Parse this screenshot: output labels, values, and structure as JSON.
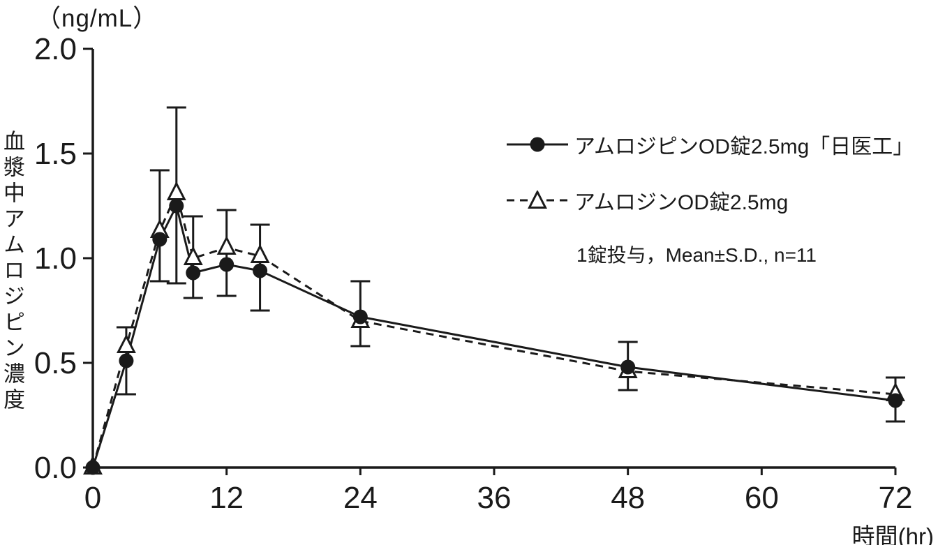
{
  "figure": {
    "background": "#ffffff",
    "ink_color": "#1a1a1a"
  },
  "chart_data": {
    "type": "line",
    "title": "",
    "xlabel": "時間(hr)",
    "ylabel": "血漿中アムロジピン濃度",
    "ylabel_unit": "（ng/mL）",
    "annotation": "1錠投与，Mean±S.D., n=11",
    "xlim": [
      0,
      72
    ],
    "ylim": [
      0,
      2.0
    ],
    "grid": false,
    "legend_position": "upper-right",
    "x_ticks": [
      {
        "v": 0,
        "label": "0"
      },
      {
        "v": 12,
        "label": "12"
      },
      {
        "v": 24,
        "label": "24"
      },
      {
        "v": 36,
        "label": "36"
      },
      {
        "v": 48,
        "label": "48"
      },
      {
        "v": 60,
        "label": "60"
      },
      {
        "v": 72,
        "label": "72"
      }
    ],
    "y_ticks": [
      {
        "v": 0,
        "label": "0.0"
      },
      {
        "v": 0.5,
        "label": "0.5"
      },
      {
        "v": 1,
        "label": "1.0"
      },
      {
        "v": 1.5,
        "label": "1.5"
      },
      {
        "v": 2,
        "label": "2.0"
      }
    ],
    "x": [
      0,
      3,
      6,
      7.5,
      9,
      12,
      15,
      24,
      48,
      72
    ],
    "series": [
      {
        "name": "アムロジピンOD錠2.5mg「日医工」",
        "marker": "filled-circle",
        "line": "solid",
        "values": [
          0,
          0.51,
          1.09,
          1.25,
          0.93,
          0.97,
          0.94,
          0.72,
          0.48,
          0.32
        ]
      },
      {
        "name": "アムロジンOD錠2.5mg",
        "marker": "open-triangle",
        "line": "dashed",
        "values": [
          0,
          0.58,
          1.13,
          1.31,
          1.0,
          1.05,
          1.01,
          0.7,
          0.46,
          0.35
        ]
      }
    ],
    "error_bars": [
      {
        "x": 3,
        "low": 0.35,
        "high": 0.67
      },
      {
        "x": 6,
        "low": 0.89,
        "high": 1.42
      },
      {
        "x": 7.5,
        "low": 0.88,
        "high": 1.72
      },
      {
        "x": 9,
        "low": 0.81,
        "high": 1.2
      },
      {
        "x": 12,
        "low": 0.82,
        "high": 1.23
      },
      {
        "x": 15,
        "low": 0.75,
        "high": 1.16
      },
      {
        "x": 24,
        "low": 0.58,
        "high": 0.89
      },
      {
        "x": 48,
        "low": 0.37,
        "high": 0.6
      },
      {
        "x": 72,
        "low": 0.22,
        "high": 0.43
      }
    ]
  }
}
